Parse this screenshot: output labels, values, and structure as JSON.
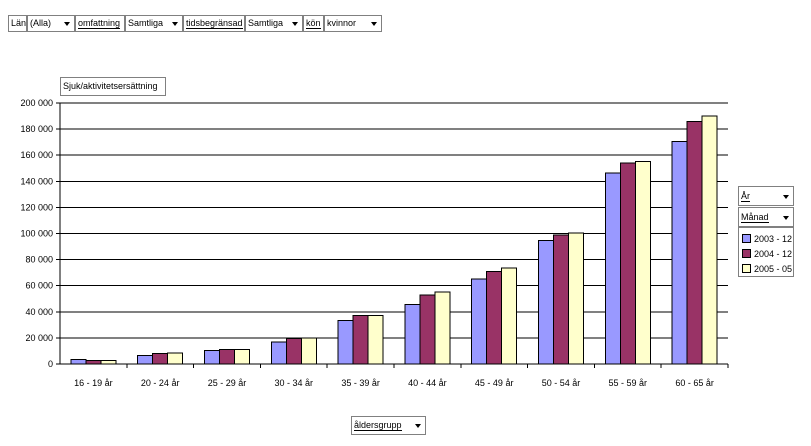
{
  "filters": [
    {
      "label": "Län",
      "value": "(Alla)"
    },
    {
      "label": "omfattning",
      "value": "Samtliga"
    },
    {
      "label": "tidsbegränsad",
      "value": "Samtliga"
    },
    {
      "label": "kön",
      "value": "kvinnor"
    }
  ],
  "data_field": "Sjuk/aktivitetsersättning",
  "column_fields": [
    "År",
    "Månad"
  ],
  "row_field": "åldersgrupp",
  "colors": {
    "s1": "#9999ff",
    "s2": "#993366",
    "s3": "#ffffcc"
  },
  "chart_data": {
    "type": "bar",
    "categories": [
      "16 - 19 år",
      "20 - 24 år",
      "25 - 29 år",
      "30 - 34 år",
      "35 - 39 år",
      "40 - 44 år",
      "45 - 49 år",
      "50 - 54 år",
      "55 - 59 år",
      "60 - 65 år"
    ],
    "series": [
      {
        "name": "2003 - 12",
        "values": [
          3500,
          6500,
          10500,
          17000,
          33500,
          45500,
          65000,
          94500,
          146500,
          170500
        ]
      },
      {
        "name": "2004 - 12",
        "values": [
          2800,
          8000,
          11000,
          19500,
          37000,
          53000,
          71000,
          99000,
          154000,
          186000
        ]
      },
      {
        "name": "2005 - 05",
        "values": [
          2800,
          8500,
          11000,
          20000,
          37000,
          55000,
          73500,
          100500,
          155000,
          190000
        ]
      }
    ],
    "ylim": [
      0,
      200000
    ],
    "yticks": [
      "0",
      "20 000",
      "40 000",
      "60 000",
      "80 000",
      "100 000",
      "120 000",
      "140 000",
      "160 000",
      "180 000",
      "200 000"
    ],
    "grid": true,
    "legend": "right"
  }
}
